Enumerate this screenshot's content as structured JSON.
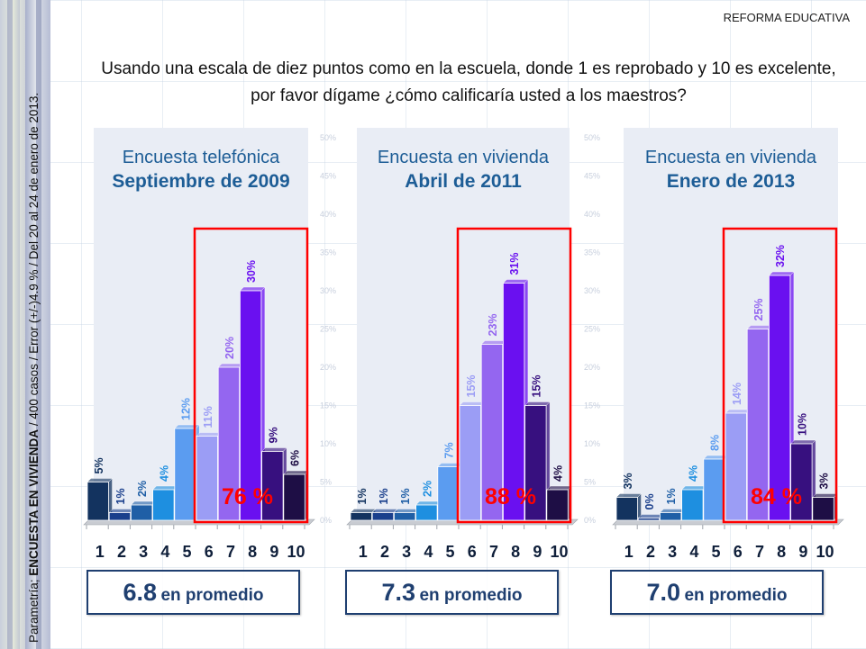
{
  "header": {
    "section": "REFORMA EDUCATIVA",
    "question_line1": "Usando una escala de diez puntos como en la escuela, donde 1 es reprobado y 10 es excelente,",
    "question_line2": "por favor dígame ¿cómo calificaría usted a los maestros?"
  },
  "side_note": {
    "prefix": "Parametría; ",
    "bold": "ENCUESTA EN VIVIENDA",
    "rest": " / 400 casos / Error (+/-)4.9 % / Del 20 al 24 de enero de 2013."
  },
  "colors": {
    "title_blue": "#1d5d96",
    "highlight_red": "#ff0000",
    "bar_colors": [
      "#13335f",
      "#1a3f8c",
      "#1f5fa6",
      "#1e8fe0",
      "#5b9cf0",
      "#9b9df5",
      "#9466f0",
      "#6a10f0",
      "#37107f",
      "#1e0e45"
    ],
    "label_colors": [
      "#13335f",
      "#1a3f8c",
      "#1f5fa6",
      "#1e8fe0",
      "#5b9cf0",
      "#9b9df5",
      "#9466f0",
      "#6a10f0",
      "#37107f",
      "#1e0e45"
    ]
  },
  "chart_data": [
    {
      "type": "bar",
      "title": "Encuesta telefónica",
      "subtitle": "Septiembre de 2009",
      "categories": [
        "1",
        "2",
        "3",
        "4",
        "5",
        "6",
        "7",
        "8",
        "9",
        "10"
      ],
      "values": [
        5,
        1,
        2,
        4,
        12,
        11,
        20,
        30,
        9,
        6
      ],
      "value_labels": [
        "5%",
        "1%",
        "2%",
        "4%",
        "12%",
        "11%",
        "20%",
        "30%",
        "9%",
        "6%"
      ],
      "highlight": {
        "from": "6",
        "to": "10",
        "label": "76 %",
        "value": 76
      },
      "average": {
        "value": "6.8",
        "label": "en promedio"
      },
      "ylim": [
        0,
        50
      ],
      "yticks": [
        "0%",
        "5%",
        "10%",
        "15%",
        "20%",
        "25%",
        "30%",
        "35%",
        "40%",
        "45%",
        "50%"
      ],
      "xlabel": "",
      "ylabel": ""
    },
    {
      "type": "bar",
      "title": "Encuesta en vivienda",
      "subtitle": "Abril de 2011",
      "categories": [
        "1",
        "2",
        "3",
        "4",
        "5",
        "6",
        "7",
        "8",
        "9",
        "10"
      ],
      "values": [
        1,
        1,
        1,
        2,
        7,
        15,
        23,
        31,
        15,
        4
      ],
      "value_labels": [
        "1%",
        "1%",
        "1%",
        "2%",
        "7%",
        "15%",
        "23%",
        "31%",
        "15%",
        "4%"
      ],
      "highlight": {
        "from": "6",
        "to": "10",
        "label": "88 %",
        "value": 88
      },
      "average": {
        "value": "7.3",
        "label": "en promedio"
      },
      "ylim": [
        0,
        50
      ],
      "yticks": [
        "0%",
        "5%",
        "10%",
        "15%",
        "20%",
        "25%",
        "30%",
        "35%",
        "40%",
        "45%",
        "50%"
      ],
      "xlabel": "",
      "ylabel": ""
    },
    {
      "type": "bar",
      "title": "Encuesta en vivienda",
      "subtitle": "Enero de 2013",
      "categories": [
        "1",
        "2",
        "3",
        "4",
        "5",
        "6",
        "7",
        "8",
        "9",
        "10"
      ],
      "values": [
        3,
        0,
        1,
        4,
        8,
        14,
        25,
        32,
        10,
        3
      ],
      "value_labels": [
        "3%",
        "0%",
        "1%",
        "4%",
        "8%",
        "14%",
        "25%",
        "32%",
        "10%",
        "3%"
      ],
      "highlight": {
        "from": "6",
        "to": "10",
        "label": "84 %",
        "value": 84
      },
      "average": {
        "value": "7.0",
        "label": "en promedio"
      },
      "ylim": [
        0,
        50
      ],
      "yticks": [
        "0%",
        "5%",
        "10%",
        "15%",
        "20%",
        "25%",
        "30%",
        "35%",
        "40%",
        "45%",
        "50%"
      ],
      "xlabel": "",
      "ylabel": ""
    }
  ]
}
